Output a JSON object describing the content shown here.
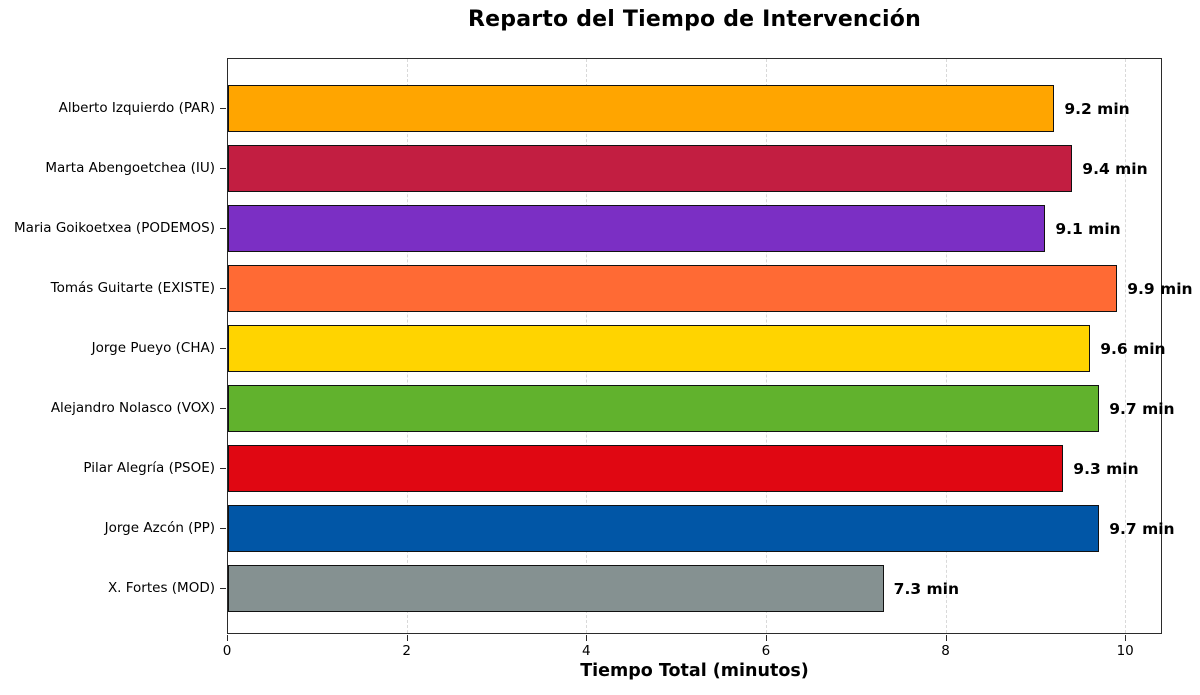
{
  "chart_data": {
    "type": "bar",
    "orientation": "horizontal",
    "title": "Reparto del Tiempo de Intervención",
    "xlabel": "Tiempo Total (minutos)",
    "ylabel": "",
    "xlim": [
      0,
      10.41
    ],
    "xticks": [
      "0",
      "2",
      "4",
      "6",
      "8",
      "10"
    ],
    "xtick_values": [
      0,
      2,
      4,
      6,
      8,
      10
    ],
    "grid": {
      "axis": "x",
      "style": "dashed",
      "color": "#d9d9d9"
    },
    "legend": "none",
    "bar_edge_color": "#111111",
    "categories": [
      "Alberto Izquierdo (PAR)",
      "Marta Abengoetchea (IU)",
      "Maria Goikoetxea (PODEMOS)",
      "Tomás Guitarte (EXISTE)",
      "Jorge Pueyo (CHA)",
      "Alejandro Nolasco (VOX)",
      "Pilar Alegría (PSOE)",
      "Jorge Azcón (PP)",
      "X. Fortes (MOD)"
    ],
    "values": [
      9.2,
      9.4,
      9.1,
      9.9,
      9.6,
      9.7,
      9.3,
      9.7,
      7.3
    ],
    "value_labels": [
      "9.2 min",
      "9.4 min",
      "9.1 min",
      "9.9 min",
      "9.6 min",
      "9.7 min",
      "9.3 min",
      "9.7 min",
      "7.3 min"
    ],
    "colors": [
      "#FFA500",
      "#C21E41",
      "#7B2FC4",
      "#FF6A34",
      "#FFD400",
      "#61B22D",
      "#E00712",
      "#0156A6",
      "#859191"
    ]
  }
}
